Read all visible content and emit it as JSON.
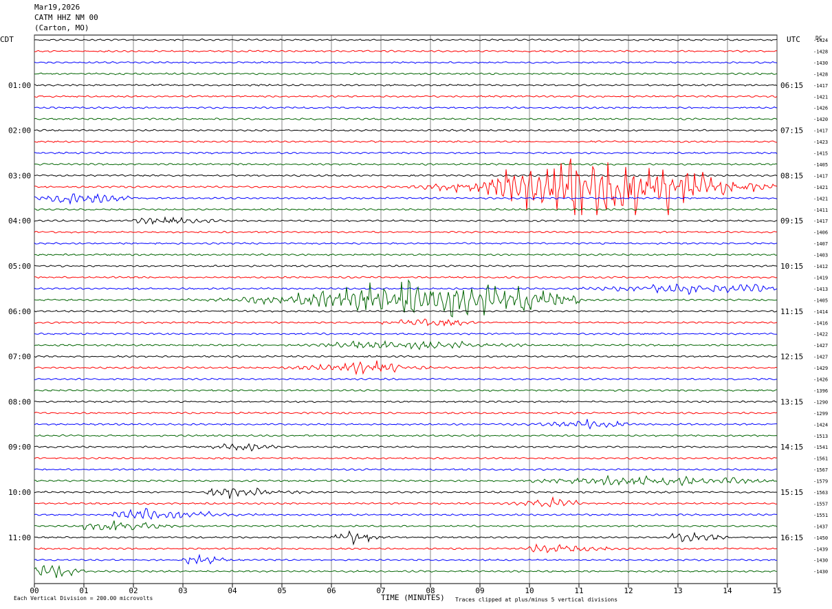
{
  "header": {
    "date": "Mar19,2026",
    "station": "CATM HHZ NM 00",
    "location": "(Carton, MO)"
  },
  "left_timezone": "CDT",
  "right_timezone": "UTC",
  "dc_label": "DC",
  "footer": {
    "scale_text": "Each Vertical Division =  200.00 microvolts",
    "xlabel": "TIME (MINUTES)",
    "clip_text": "Traces clipped at plus/minus 5 vertical divisions"
  },
  "colors": [
    "#000000",
    "#ff0000",
    "#0000ff",
    "#006400"
  ],
  "chart_data": {
    "type": "line",
    "xlabel": "TIME (MINUTES)",
    "xlim": [
      0,
      15
    ],
    "x_ticks": [
      "00",
      "01",
      "02",
      "03",
      "04",
      "05",
      "06",
      "07",
      "08",
      "09",
      "10",
      "11",
      "12",
      "13",
      "14",
      "15"
    ],
    "y_ticks_left": [
      "01:00",
      "02:00",
      "03:00",
      "04:00",
      "05:00",
      "06:00",
      "07:00",
      "08:00",
      "09:00",
      "10:00",
      "11:00"
    ],
    "y_ticks_right": [
      "06:15",
      "07:15",
      "08:15",
      "09:15",
      "10:15",
      "11:15",
      "12:15",
      "13:15",
      "14:15",
      "15:15",
      "16:15"
    ],
    "dc_offsets": [
      -1424,
      -1428,
      -1430,
      -1428,
      -1417,
      -1421,
      -1426,
      -1420,
      -1417,
      -1423,
      -1415,
      -1405,
      -1417,
      -1421,
      -1421,
      -1411,
      -1417,
      -1406,
      -1407,
      -1403,
      -1412,
      -1419,
      -1413,
      -1405,
      -1414,
      -1416,
      -1422,
      -1427,
      -1427,
      -1429,
      -1426,
      -1396,
      -1290,
      -1299,
      -1424,
      -1513,
      -1541,
      -1561,
      -1567,
      -1579,
      -1563,
      -1557,
      -1551,
      -1437,
      -1450,
      -1439,
      -1430,
      -1430
    ],
    "events": [
      {
        "trace": 13,
        "start": 5.0,
        "end": 15.0,
        "peak": 11.5,
        "amp": 5.0,
        "width": 2.0
      },
      {
        "trace": 14,
        "start": 0.0,
        "end": 2.0,
        "peak": 0.8,
        "amp": 0.9,
        "width": 0.9
      },
      {
        "trace": 16,
        "start": 2.0,
        "end": 4.0,
        "peak": 2.5,
        "amp": 0.5,
        "width": 1.0
      },
      {
        "trace": 22,
        "start": 8.0,
        "end": 15.0,
        "peak": 14.0,
        "amp": 0.6,
        "width": 2.0
      },
      {
        "trace": 23,
        "start": 0.0,
        "end": 11.0,
        "peak": 8.0,
        "amp": 2.4,
        "width": 2.5
      },
      {
        "trace": 25,
        "start": 7.0,
        "end": 9.0,
        "peak": 8.0,
        "amp": 0.5,
        "width": 0.8
      },
      {
        "trace": 27,
        "start": 5.5,
        "end": 10.0,
        "peak": 7.5,
        "amp": 0.6,
        "width": 1.5
      },
      {
        "trace": 29,
        "start": 2.5,
        "end": 8.0,
        "peak": 6.7,
        "amp": 0.8,
        "width": 1.0
      },
      {
        "trace": 34,
        "start": 9.0,
        "end": 12.0,
        "peak": 11.3,
        "amp": 0.6,
        "width": 0.8
      },
      {
        "trace": 36,
        "start": 3.5,
        "end": 5.0,
        "peak": 4.2,
        "amp": 0.5,
        "width": 0.5
      },
      {
        "trace": 39,
        "start": 10.0,
        "end": 15.0,
        "peak": 12.5,
        "amp": 0.6,
        "width": 2.0
      },
      {
        "trace": 40,
        "start": 3.5,
        "end": 8.0,
        "peak": 3.9,
        "amp": 0.6,
        "width": 1.0
      },
      {
        "trace": 41,
        "start": 9.0,
        "end": 11.0,
        "peak": 10.5,
        "amp": 0.6,
        "width": 0.6
      },
      {
        "trace": 42,
        "start": 1.5,
        "end": 5.0,
        "peak": 2.0,
        "amp": 0.7,
        "width": 1.5
      },
      {
        "trace": 43,
        "start": 1.0,
        "end": 3.0,
        "peak": 1.5,
        "amp": 0.7,
        "width": 1.0
      },
      {
        "trace": 44,
        "start": 6.0,
        "end": 7.5,
        "peak": 6.4,
        "amp": 0.9,
        "width": 0.4
      },
      {
        "trace": 44,
        "start": 12.5,
        "end": 14.0,
        "peak": 13.3,
        "amp": 0.6,
        "width": 0.6
      },
      {
        "trace": 45,
        "start": 10.0,
        "end": 13.0,
        "peak": 10.5,
        "amp": 0.5,
        "width": 1.0
      },
      {
        "trace": 46,
        "start": 3.0,
        "end": 4.0,
        "peak": 3.4,
        "amp": 0.8,
        "width": 0.4
      },
      {
        "trace": 47,
        "start": 0.0,
        "end": 1.0,
        "peak": 0.4,
        "amp": 1.0,
        "width": 0.4
      }
    ]
  }
}
